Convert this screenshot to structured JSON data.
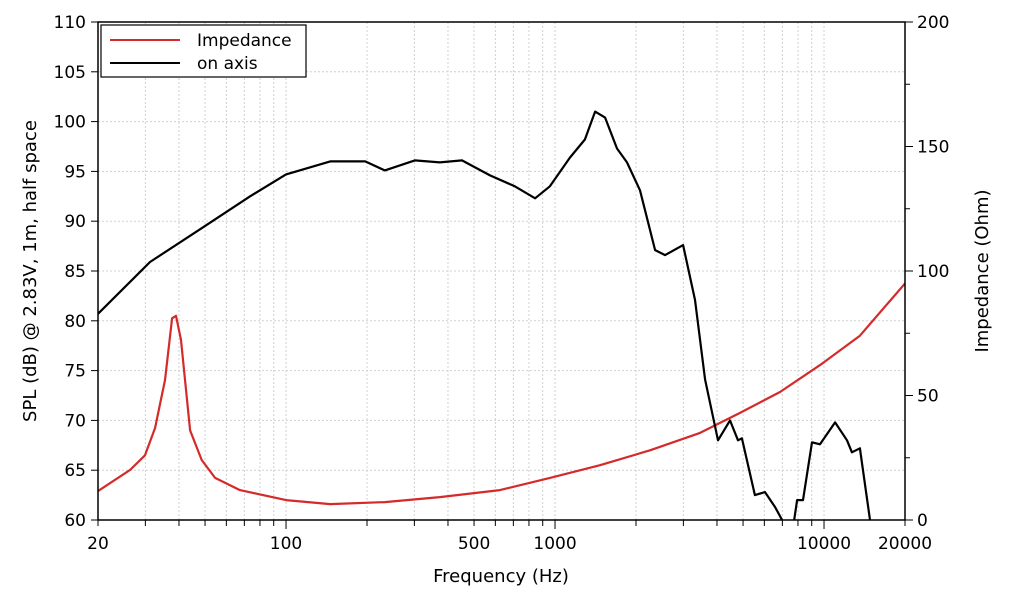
{
  "chart_data": {
    "type": "line",
    "xlabel": "Frequency (Hz)",
    "ylabel": "SPL (dB) @ 2.83V, 1m, half space",
    "y2label": "Impedance (Ohm)",
    "xscale": "log",
    "xlim": [
      20,
      20000
    ],
    "ylim": [
      60,
      110
    ],
    "y2lim": [
      0,
      200
    ],
    "grid": true,
    "legend_position": "top-left",
    "xticks": [
      20,
      100,
      500,
      1000,
      10000,
      20000
    ],
    "yticks": [
      60,
      65,
      70,
      75,
      80,
      85,
      90,
      95,
      100,
      105,
      110
    ],
    "y2ticks": [
      0,
      50,
      100,
      150,
      200
    ],
    "series": [
      {
        "name": "Impedance",
        "axis": "right",
        "color": "#d42a2a",
        "x": [
          20,
          26.3,
          29.9,
          32.6,
          35.5,
          37.7,
          39,
          40.7,
          44,
          48.6,
          54.5,
          67.4,
          100,
          146,
          233,
          373,
          624,
          957,
          1470,
          2255,
          3460,
          4870,
          6860,
          9660,
          13600,
          20000
        ],
        "y": [
          11.6,
          20.1,
          26,
          37,
          56.2,
          81,
          82,
          72.3,
          36,
          24.1,
          16.9,
          12,
          8,
          6.4,
          7.2,
          9.2,
          12,
          16.9,
          22,
          28,
          35,
          43,
          51.4,
          62.2,
          74,
          95
        ]
      },
      {
        "name": "on axis",
        "axis": "left",
        "color": "#000000",
        "x": [
          20,
          31.2,
          48.6,
          73.5,
          100,
          146,
          197,
          233,
          301,
          373,
          451,
          573,
          709,
          843,
          957,
          1137,
          1291,
          1409,
          1535,
          1700,
          1852,
          2070,
          2355,
          2565,
          2992,
          3313,
          3612,
          4036,
          4470,
          4787,
          4950,
          5534,
          6034,
          6577,
          6984,
          7300,
          7600,
          7940,
          8350,
          9020,
          9660,
          10990,
          12170,
          12700,
          13600,
          14820,
          15200
        ],
        "y": [
          80.7,
          85.9,
          89.3,
          92.5,
          94.7,
          96.0,
          96.0,
          95.1,
          96.1,
          95.9,
          96.1,
          94.6,
          93.5,
          92.3,
          93.5,
          96.4,
          98.2,
          101.0,
          100.4,
          97.3,
          95.9,
          93.1,
          87.1,
          86.6,
          87.6,
          82.1,
          74.1,
          68.0,
          70.0,
          68.0,
          68.2,
          62.5,
          62.8,
          61.3,
          60,
          58.5,
          58.5,
          62,
          62,
          67.8,
          67.6,
          69.8,
          68.0,
          66.8,
          67.2,
          60,
          58
        ]
      }
    ]
  }
}
